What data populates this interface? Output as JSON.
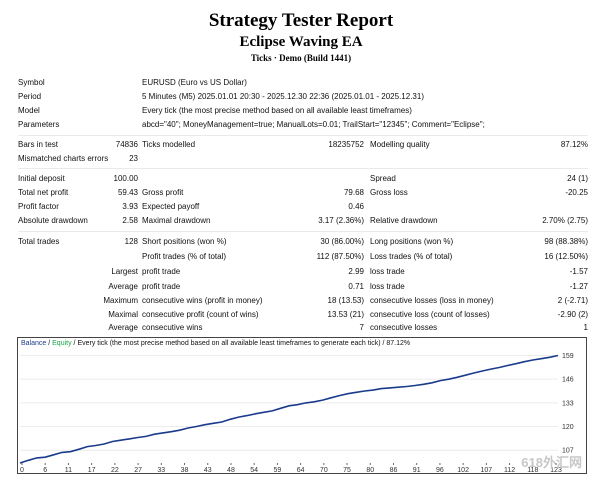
{
  "header": {
    "title": "Strategy Tester Report",
    "subtitle": "Eclipse Waving EA",
    "build": "Ticks · Demo (Build 1441)"
  },
  "info": [
    {
      "label": "Symbol",
      "value": "EURUSD (Euro vs US Dollar)"
    },
    {
      "label": "Period",
      "value": "5 Minutes (M5) 2025.01.01 20:30 - 2025.12.30 22:36 (2025.01.01 - 2025.12.31)"
    },
    {
      "label": "Model",
      "value": "Every tick (the most precise method based on all available least timeframes)"
    },
    {
      "label": "Parameters",
      "value": "abcd=\"40\"; MoneyManagement=true; ManualLots=0.01; TrailStart=\"12345\"; Comment=\"Eclipse\";"
    }
  ],
  "stats1": {
    "bars_label": "Bars in test",
    "bars_value": "74836",
    "ticks_label": "Ticks modelled",
    "ticks_value": "18235752",
    "quality_label": "Modelling quality",
    "quality_value": "87.12%",
    "mismatch_label": "Mismatched charts errors",
    "mismatch_value": "23"
  },
  "stats2": {
    "deposit_label": "Initial deposit",
    "deposit_value": "100.00",
    "spread_label": "Spread",
    "spread_value": "24 (1)",
    "netprofit_label": "Total net profit",
    "netprofit_value": "59.43",
    "grossprofit_label": "Gross profit",
    "grossprofit_value": "79.68",
    "grossloss_label": "Gross loss",
    "grossloss_value": "-20.25",
    "pf_label": "Profit factor",
    "pf_value": "3.93",
    "payoff_label": "Expected payoff",
    "payoff_value": "0.46",
    "absdd_label": "Absolute drawdown",
    "absdd_value": "2.58",
    "maxdd_label": "Maximal drawdown",
    "maxdd_value": "3.17 (2.36%)",
    "reldd_label": "Relative drawdown",
    "reldd_value": "2.70% (2.75)"
  },
  "stats3": {
    "trades_label": "Total trades",
    "trades_value": "128",
    "short_label": "Short positions (won %)",
    "short_value": "30 (86.00%)",
    "long_label": "Long positions (won %)",
    "long_value": "98 (88.38%)",
    "pt_label": "Profit trades (% of total)",
    "pt_value": "112 (87.50%)",
    "lt_label": "Loss trades (% of total)",
    "lt_value": "16 (12.50%)",
    "largest": "Largest",
    "avg": "Average",
    "maximum": "Maximum",
    "maximal": "Maximal",
    "average2": "Average",
    "lpt_label": "profit trade",
    "lpt_value": "2.99",
    "llt_label": "loss trade",
    "llt_value": "-1.57",
    "apt_label": "profit trade",
    "apt_value": "0.71",
    "alt_label": "loss trade",
    "alt_value": "-1.27",
    "mcw_label": "consecutive wins (profit in money)",
    "mcw_value": "18 (13.53)",
    "mcl_label": "consecutive losses (loss in money)",
    "mcl_value": "2 (-2.71)",
    "mcp_label": "consecutive profit (count of wins)",
    "mcp_value": "13.53 (21)",
    "mcloss_label": "consecutive loss (count of losses)",
    "mcloss_value": "-2.90 (2)",
    "acw_label": "consecutive wins",
    "acw_value": "7",
    "acl_label": "consecutive losses",
    "acl_value": "1"
  },
  "legend": {
    "balance": "Balance",
    "sep": " / ",
    "equity": "Equity",
    "rest": " / Every tick (the most precise method based on all available least timeframes to generate each tick) / 87.12%"
  },
  "watermark": "618外汇网",
  "chart_data": {
    "type": "line",
    "x_ticks": [
      "0",
      "6",
      "11",
      "17",
      "22",
      "27",
      "33",
      "38",
      "43",
      "48",
      "54",
      "59",
      "64",
      "70",
      "75",
      "80",
      "86",
      "91",
      "96",
      "102",
      "107",
      "112",
      "118",
      "123"
    ],
    "y_ticks": [
      "159",
      "146",
      "133",
      "120",
      "107"
    ],
    "ylim": [
      100,
      162
    ],
    "xlim": [
      0,
      128
    ],
    "series": [
      {
        "name": "Balance",
        "color": "#1a3b8c",
        "x": [
          0,
          2,
          4,
          6,
          8,
          10,
          12,
          14,
          16,
          18,
          20,
          22,
          24,
          26,
          28,
          30,
          32,
          34,
          36,
          38,
          40,
          42,
          44,
          46,
          48,
          50,
          52,
          54,
          56,
          58,
          60,
          62,
          64,
          66,
          68,
          70,
          72,
          74,
          76,
          78,
          80,
          82,
          84,
          86,
          88,
          90,
          92,
          94,
          96,
          98,
          100,
          102,
          104,
          106,
          108,
          110,
          112,
          114,
          116,
          118,
          120,
          122,
          124,
          126,
          128
        ],
        "y": [
          100,
          101.5,
          102.8,
          103.2,
          104.5,
          105.8,
          106.2,
          107.5,
          109.0,
          109.6,
          110.4,
          111.8,
          112.5,
          113.2,
          114.0,
          114.6,
          115.8,
          116.5,
          117.2,
          118.0,
          119.2,
          120.0,
          121.0,
          121.8,
          122.5,
          124.0,
          125.2,
          126.0,
          127.0,
          127.8,
          128.6,
          130.0,
          131.4,
          132.0,
          133.0,
          133.6,
          134.5,
          135.8,
          137.0,
          138.0,
          138.8,
          139.5,
          140.0,
          140.8,
          141.2,
          141.6,
          142.0,
          142.5,
          143.2,
          144.0,
          145.2,
          146.0,
          147.0,
          148.2,
          149.4,
          150.5,
          151.5,
          152.4,
          153.5,
          154.5,
          155.6,
          156.5,
          157.2,
          158.0,
          159.0
        ]
      }
    ]
  }
}
